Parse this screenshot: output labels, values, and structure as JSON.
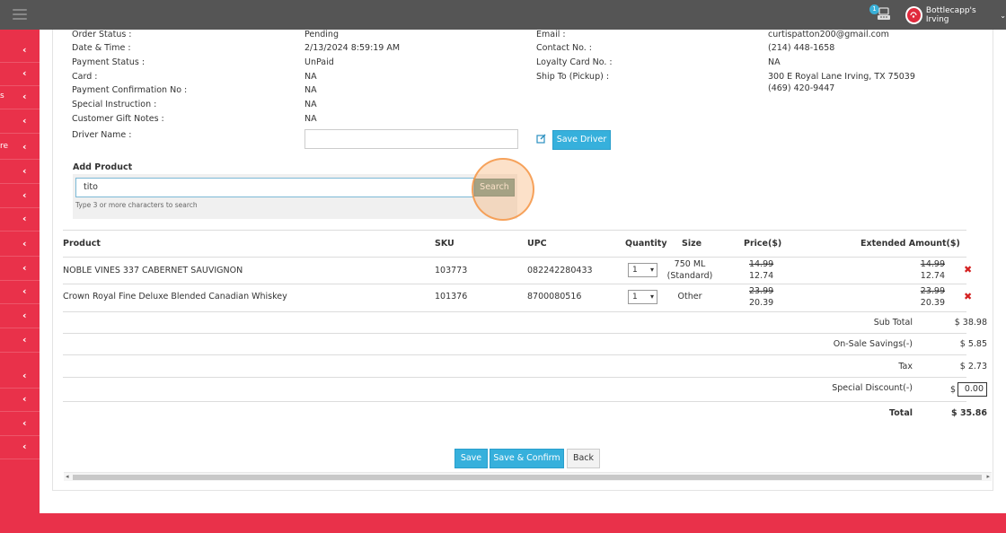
{
  "topbar": {
    "notification_count": "1",
    "store_name": "Bottlecapp's Irving"
  },
  "sidebar": {
    "fragments": [
      "",
      "",
      "s",
      "",
      "re",
      "",
      "",
      "",
      "",
      "",
      "",
      "",
      "",
      "",
      "",
      "",
      ""
    ]
  },
  "order": {
    "left": [
      {
        "label": "Order Status :",
        "value": "Pending"
      },
      {
        "label": "Date & Time :",
        "value": "2/13/2024 8:59:19 AM"
      },
      {
        "label": "Payment Status :",
        "value": "UnPaid"
      },
      {
        "label": "Card :",
        "value": "NA"
      },
      {
        "label": "Payment Confirmation No :",
        "value": "NA"
      },
      {
        "label": "Special Instruction :",
        "value": "NA"
      },
      {
        "label": "Customer Gift Notes :",
        "value": "NA"
      }
    ],
    "right": [
      {
        "label": "Email :",
        "value": "curtispatton200@gmail.com"
      },
      {
        "label": "Contact No. :",
        "value": "(214) 448-1658"
      },
      {
        "label": "Loyalty Card No. :",
        "value": "NA"
      },
      {
        "label": "Ship To (Pickup) :",
        "value": "300 E Royal Lane  Irving, TX 75039",
        "value2": "(469) 420-9447"
      }
    ],
    "driver_label": "Driver Name :",
    "driver_value": "",
    "save_driver": "Save Driver"
  },
  "add_product": {
    "title": "Add Product",
    "search_value": "tito",
    "search_button": "Search",
    "hint": "Type 3 or more characters to search"
  },
  "table": {
    "headers": {
      "product": "Product",
      "sku": "SKU",
      "upc": "UPC",
      "quantity": "Quantity",
      "size": "Size",
      "price": "Price($)",
      "extended": "Extended Amount($)"
    },
    "rows": [
      {
        "product": "NOBLE VINES 337 CABERNET SAUVIGNON",
        "sku": "103773",
        "upc": "082242280433",
        "qty": "1",
        "size1": "750 ML",
        "size2": "(Standard)",
        "old_price": "14.99",
        "price": "12.74",
        "old_ext": "14.99",
        "ext": "12.74"
      },
      {
        "product": "Crown Royal Fine Deluxe Blended Canadian Whiskey",
        "sku": "101376",
        "upc": "8700080516",
        "qty": "1",
        "size1": "Other",
        "size2": "",
        "old_price": "23.99",
        "price": "20.39",
        "old_ext": "23.99",
        "ext": "20.39"
      }
    ]
  },
  "summary": {
    "subtotal_label": "Sub Total",
    "subtotal": "$ 38.98",
    "savings_label": "On-Sale Savings(-)",
    "savings": "$ 5.85",
    "tax_label": "Tax",
    "tax": "$ 2.73",
    "discount_label": "Special Discount(-)",
    "discount_currency": "$",
    "discount_value": "0.00",
    "total_label": "Total",
    "total": "$ 35.86"
  },
  "actions": {
    "save": "Save",
    "save_confirm": "Save & Confirm",
    "back": "Back"
  }
}
